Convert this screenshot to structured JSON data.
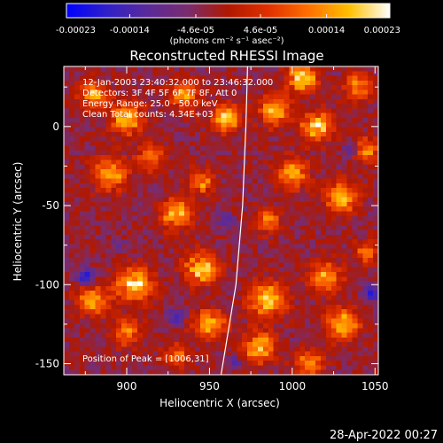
{
  "chart_data": {
    "type": "heatmap",
    "title": "Reconstructed RHESSI Image",
    "xlabel": "Heliocentric X (arcsec)",
    "ylabel": "Heliocentric Y (arcsec)",
    "xlim": [
      862,
      1052
    ],
    "ylim": [
      -157,
      38
    ],
    "x_ticks": [
      900,
      950,
      1000,
      1050
    ],
    "y_ticks": [
      0,
      -50,
      -100,
      -150
    ],
    "colorbar": {
      "range": [
        -0.00023,
        0.00023
      ],
      "tick_values": [
        -0.00023,
        -0.00014,
        -4.6e-05,
        4.6e-05,
        0.00014,
        0.00023
      ],
      "tick_labels": [
        "-0.00023",
        "-0.00014",
        "-4.6e-05",
        "4.6e-05",
        "0.00014",
        "0.00023"
      ],
      "unit_label": "(photons cm⁻² s⁻¹ asec⁻²)",
      "colormap": [
        "#0000ff",
        "#3020c8",
        "#5a2a9a",
        "#7a2c6e",
        "#b01800",
        "#e03000",
        "#ff7000",
        "#ffc000",
        "#ffffff"
      ]
    },
    "annotations": [
      "12-Jan-2003 23:40:32.000 to 23:46:32.000",
      "Detectors: 3F 4F 5F 6F 7F 8F, Att 0",
      "Energy Range: 25.0 - 50.0 keV",
      "Clean     Total counts: 4.34E+03"
    ],
    "peak_label": "Position of Peak = [1006,31]",
    "peak": [
      1006,
      31
    ],
    "limb_curve": [
      [
        973,
        38
      ],
      [
        972,
        0
      ],
      [
        970,
        -50
      ],
      [
        966,
        -100
      ],
      [
        957,
        -157
      ]
    ],
    "bright_sources": [
      {
        "x": 880,
        "y": 20,
        "value": 0.00016,
        "size": 8
      },
      {
        "x": 900,
        "y": 5,
        "value": 0.0002,
        "size": 9
      },
      {
        "x": 890,
        "y": -30,
        "value": 0.00015,
        "size": 10
      },
      {
        "x": 915,
        "y": -20,
        "value": 0.00012,
        "size": 8
      },
      {
        "x": 935,
        "y": 20,
        "value": 0.00014,
        "size": 9
      },
      {
        "x": 930,
        "y": -55,
        "value": 0.00017,
        "size": 9
      },
      {
        "x": 960,
        "y": 5,
        "value": 0.00018,
        "size": 8
      },
      {
        "x": 945,
        "y": -35,
        "value": 0.00013,
        "size": 7
      },
      {
        "x": 990,
        "y": 10,
        "value": 0.00016,
        "size": 9
      },
      {
        "x": 1006,
        "y": 31,
        "value": 0.00023,
        "size": 8
      },
      {
        "x": 1015,
        "y": 0,
        "value": 0.00019,
        "size": 9
      },
      {
        "x": 1040,
        "y": 25,
        "value": 0.00014,
        "size": 8
      },
      {
        "x": 1000,
        "y": -30,
        "value": 0.00015,
        "size": 9
      },
      {
        "x": 1030,
        "y": -45,
        "value": 0.00018,
        "size": 9
      },
      {
        "x": 985,
        "y": -60,
        "value": 0.00012,
        "size": 7
      },
      {
        "x": 1045,
        "y": -15,
        "value": 0.00013,
        "size": 7
      },
      {
        "x": 880,
        "y": -110,
        "value": 0.00016,
        "size": 9
      },
      {
        "x": 905,
        "y": -100,
        "value": 0.00021,
        "size": 10
      },
      {
        "x": 900,
        "y": -130,
        "value": 0.00014,
        "size": 8
      },
      {
        "x": 945,
        "y": -90,
        "value": 0.0002,
        "size": 9
      },
      {
        "x": 950,
        "y": -125,
        "value": 0.00017,
        "size": 9
      },
      {
        "x": 930,
        "y": -145,
        "value": 0.00012,
        "size": 7
      },
      {
        "x": 985,
        "y": -110,
        "value": 0.00021,
        "size": 10
      },
      {
        "x": 980,
        "y": -140,
        "value": 0.00018,
        "size": 9
      },
      {
        "x": 1020,
        "y": -95,
        "value": 0.00016,
        "size": 9
      },
      {
        "x": 1030,
        "y": -125,
        "value": 0.00019,
        "size": 9
      },
      {
        "x": 1010,
        "y": -150,
        "value": 0.00013,
        "size": 8
      },
      {
        "x": 1045,
        "y": -80,
        "value": 0.00011,
        "size": 7
      }
    ],
    "dark_sources": [
      {
        "x": 875,
        "y": -95,
        "value": -0.0002,
        "size": 5
      },
      {
        "x": 930,
        "y": -120,
        "value": -0.00016,
        "size": 5
      },
      {
        "x": 1048,
        "y": -105,
        "value": -0.00018,
        "size": 5
      },
      {
        "x": 960,
        "y": -60,
        "value": -0.00012,
        "size": 5
      },
      {
        "x": 1035,
        "y": -15,
        "value": -0.0001,
        "size": 4
      },
      {
        "x": 895,
        "y": -75,
        "value": -0.0001,
        "size": 4
      },
      {
        "x": 965,
        "y": -150,
        "value": -0.00014,
        "size": 4
      }
    ]
  },
  "footer": {
    "datetime": "28-Apr-2022 00:27"
  }
}
